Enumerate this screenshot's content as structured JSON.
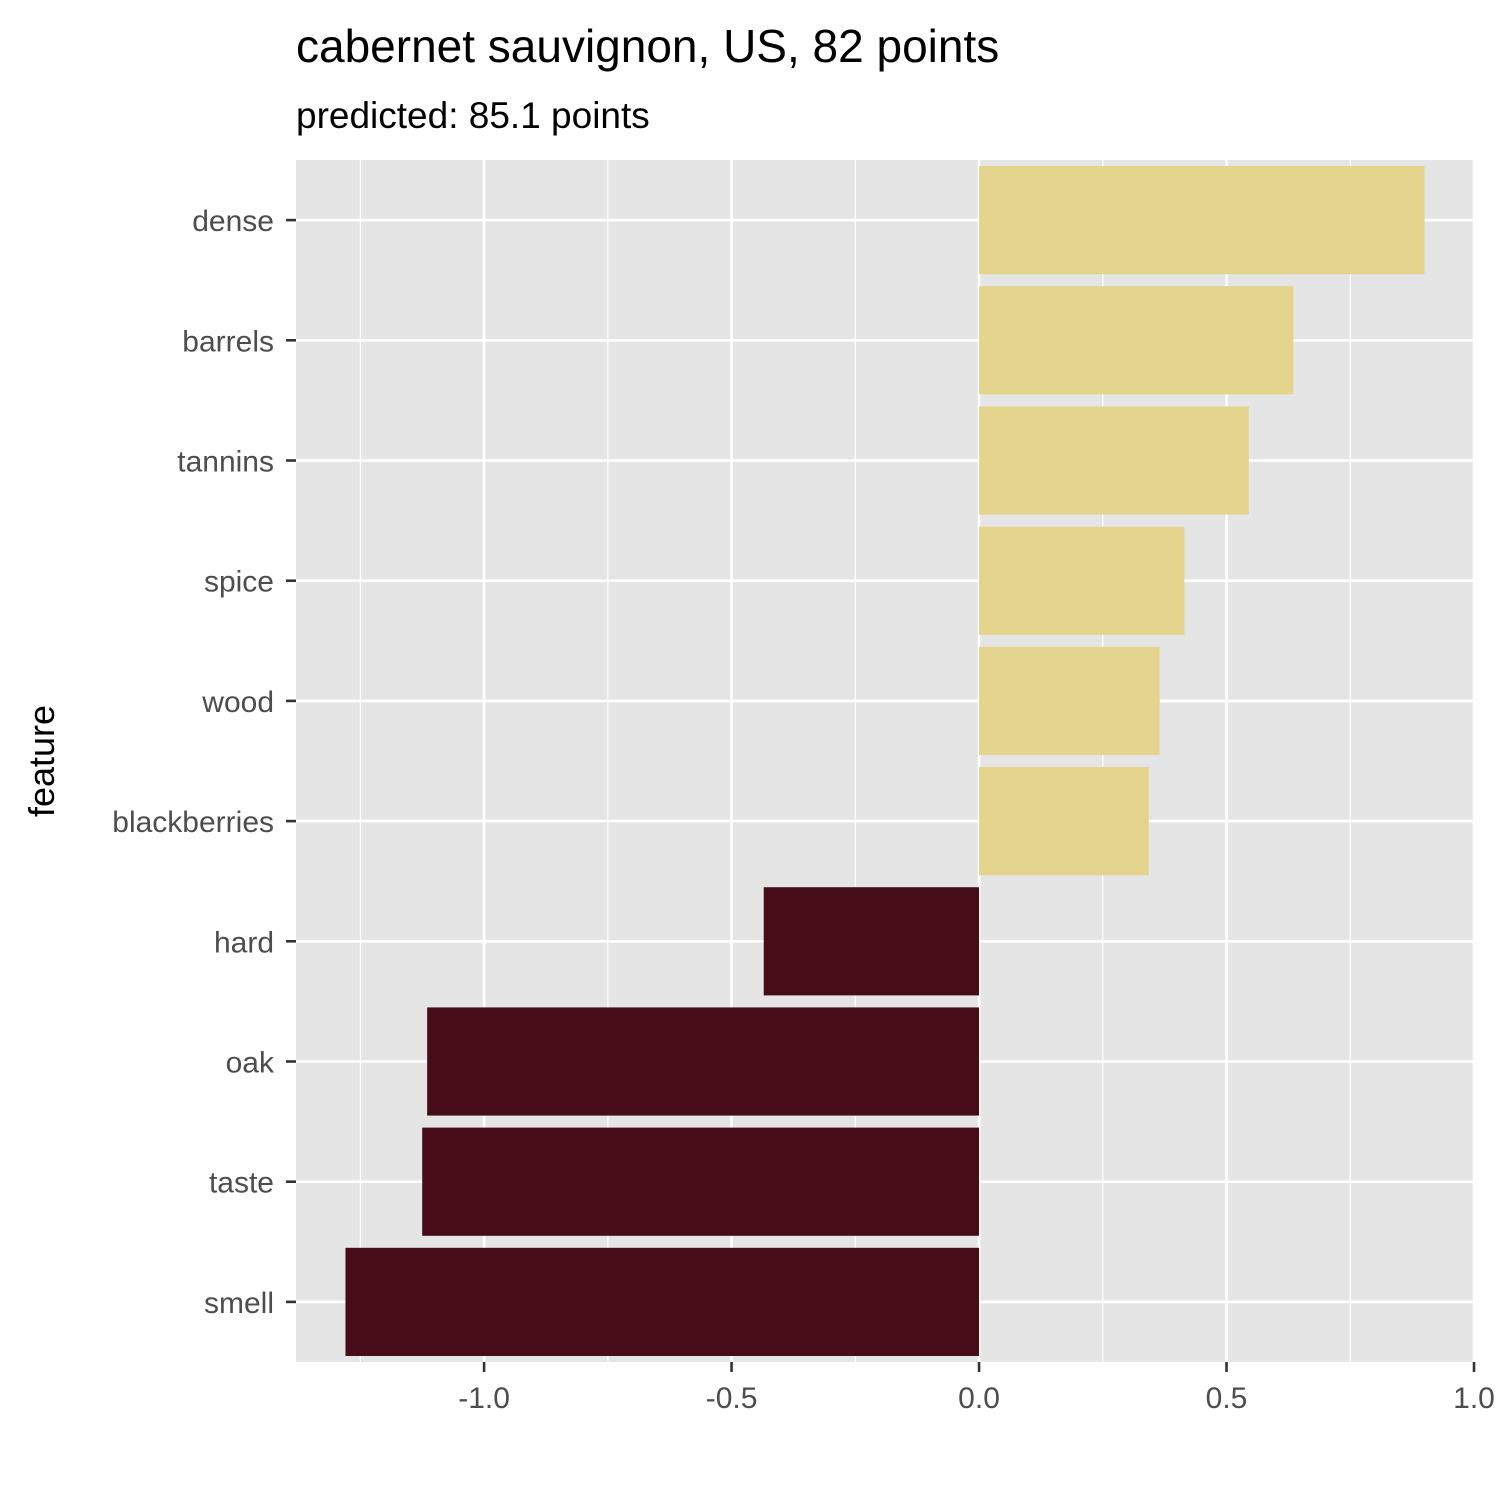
{
  "chart_data": {
    "type": "bar",
    "orientation": "horizontal",
    "title": "cabernet sauvignon, US, 82 points",
    "subtitle": "predicted: 85.1 points",
    "xlabel": "",
    "ylabel": "feature",
    "categories": [
      "dense",
      "barrels",
      "tannins",
      "spice",
      "wood",
      "blackberries",
      "hard",
      "oak",
      "taste",
      "smell"
    ],
    "values": [
      0.9,
      0.635,
      0.545,
      0.415,
      0.365,
      0.343,
      -0.435,
      -1.115,
      -1.125,
      -1.28
    ],
    "xlim": [
      -1.38,
      1.0
    ],
    "xticks": [
      -1.0,
      -0.5,
      0.0,
      0.5,
      1.0
    ],
    "xtick_labels": [
      "-1.0",
      "-0.5",
      "0.0",
      "0.5",
      "1.0"
    ],
    "grid": true,
    "colors": {
      "positive": "#E4D48E",
      "negative": "#460D18",
      "panel": "#E5E5E5",
      "grid": "#FFFFFF",
      "tick_text": "#4D4D4D"
    }
  }
}
